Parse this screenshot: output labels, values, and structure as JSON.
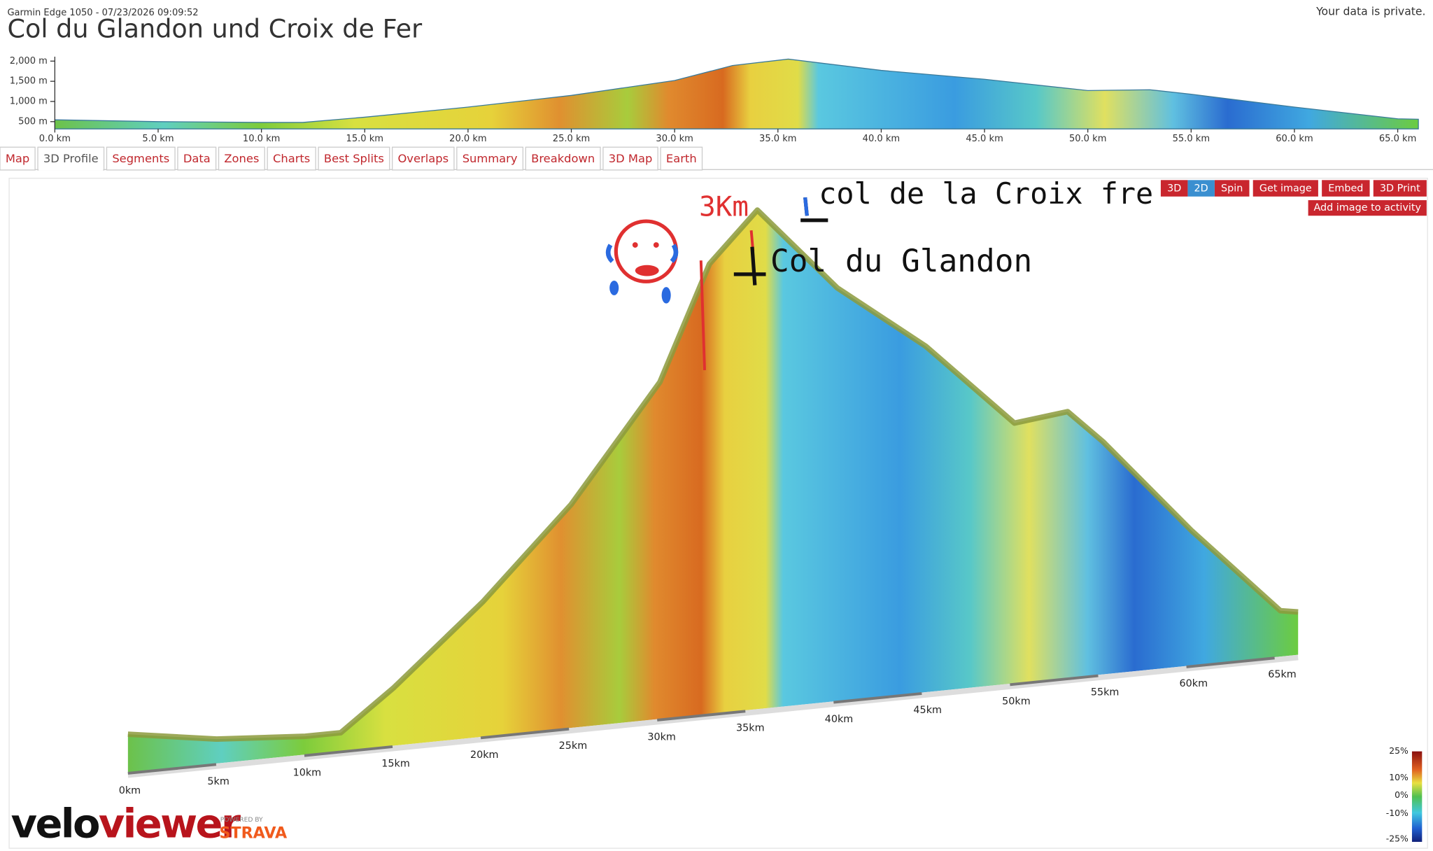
{
  "header": {
    "device_date": "Garmin Edge 1050 - 07/23/2026 09:09:52",
    "title": "Col du Glandon und Croix de Fer",
    "privacy": "Your data is private."
  },
  "chart_data": {
    "type": "area",
    "x": [
      0,
      5,
      10,
      12,
      15,
      20,
      25,
      30,
      32.8,
      35.5,
      40,
      45,
      50,
      53,
      55,
      60,
      65,
      66
    ],
    "values": [
      545,
      500,
      480,
      480,
      610,
      860,
      1150,
      1520,
      1890,
      2050,
      1770,
      1550,
      1270,
      1290,
      1180,
      860,
      570,
      560
    ],
    "xlim": [
      0,
      66
    ],
    "ylim": [
      320,
      2110
    ],
    "xticks": [
      {
        "value": 0,
        "label": "0.0 km"
      },
      {
        "value": 5,
        "label": "5.0 km"
      },
      {
        "value": 10,
        "label": "10.0 km"
      },
      {
        "value": 15,
        "label": "15.0 km"
      },
      {
        "value": 20,
        "label": "20.0 km"
      },
      {
        "value": 25,
        "label": "25.0 km"
      },
      {
        "value": 30,
        "label": "30.0 km"
      },
      {
        "value": 35,
        "label": "35.0 km"
      },
      {
        "value": 40,
        "label": "40.0 km"
      },
      {
        "value": 45,
        "label": "45.0 km"
      },
      {
        "value": 50,
        "label": "50.0 km"
      },
      {
        "value": 55,
        "label": "55.0 km"
      },
      {
        "value": 60,
        "label": "60.0 km"
      },
      {
        "value": 65,
        "label": "65.0 km"
      }
    ],
    "yticks": [
      {
        "value": 500,
        "label": "500 m"
      },
      {
        "value": 1000,
        "label": "1,000 m"
      },
      {
        "value": 1500,
        "label": "1,500 m"
      },
      {
        "value": 2000,
        "label": "2,000 m"
      }
    ]
  },
  "tabs": [
    "Map",
    "3D Profile",
    "Segments",
    "Data",
    "Zones",
    "Charts",
    "Best Splits",
    "Overlaps",
    "Summary",
    "Breakdown",
    "3D Map",
    "Earth"
  ],
  "active_tab": 1,
  "view_buttons": [
    "3D",
    "2D",
    "Spin",
    "Get image",
    "Embed",
    "3D Print"
  ],
  "active_view_button": 1,
  "add_image": "Add image to activity",
  "profile_3d": {
    "km_labels": [
      "0km",
      "5km",
      "10km",
      "15km",
      "20km",
      "25km",
      "30km",
      "35km",
      "40km",
      "45km",
      "50km",
      "55km",
      "60km",
      "65km"
    ]
  },
  "annotations": {
    "distance": "3Km",
    "glandon": "Col du Glandon",
    "croix_de_fer": "col de la Croix fre"
  },
  "gradient_legend": [
    "25%",
    "10%",
    "0%",
    "-10%",
    "-25%"
  ],
  "logo": {
    "velo": "velo",
    "viewer": "viewer",
    "powered_by": "POWERED BY",
    "strava": "STRAVA"
  }
}
